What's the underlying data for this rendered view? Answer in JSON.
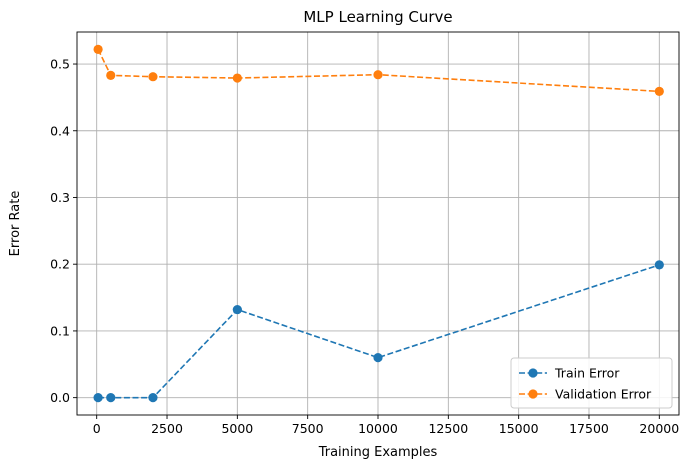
{
  "chart_data": {
    "type": "line",
    "title": "MLP Learning Curve",
    "xlabel": "Training Examples",
    "ylabel": "Error Rate",
    "xlim": [
      -700,
      20700
    ],
    "ylim": [
      -0.026,
      0.548
    ],
    "xticks": [
      0,
      2500,
      5000,
      7500,
      10000,
      12500,
      15000,
      17500,
      20000
    ],
    "yticks": [
      0.0,
      0.1,
      0.2,
      0.3,
      0.4,
      0.5
    ],
    "xtick_labels": [
      "0",
      "2500",
      "5000",
      "7500",
      "10000",
      "12500",
      "15000",
      "17500",
      "20000"
    ],
    "ytick_labels": [
      "0.0",
      "0.1",
      "0.2",
      "0.3",
      "0.4",
      "0.5"
    ],
    "grid": true,
    "legend_position": "lower-right",
    "x": [
      50,
      500,
      2000,
      5000,
      10000,
      20000
    ],
    "series": [
      {
        "name": "Train Error",
        "color": "#1f77b4",
        "linestyle": "dashed",
        "marker": "circle",
        "values": [
          0.0,
          0.0,
          0.0,
          0.132,
          0.06,
          0.199
        ]
      },
      {
        "name": "Validation Error",
        "color": "#ff7f0e",
        "linestyle": "dashed",
        "marker": "circle",
        "values": [
          0.522,
          0.483,
          0.481,
          0.479,
          0.484,
          0.459
        ]
      }
    ]
  }
}
